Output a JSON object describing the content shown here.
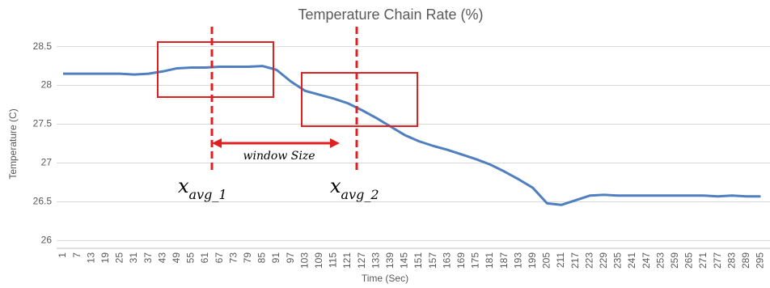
{
  "chart_data": {
    "type": "line",
    "title": "Temperature Chain Rate (%)",
    "x_label": "Time (Sec)",
    "y_label": "Temperature (C)",
    "categories": [
      "1",
      "7",
      "13",
      "19",
      "25",
      "31",
      "37",
      "43",
      "49",
      "55",
      "61",
      "67",
      "73",
      "79",
      "85",
      "91",
      "97",
      "103",
      "109",
      "115",
      "121",
      "127",
      "133",
      "139",
      "145",
      "151",
      "157",
      "163",
      "169",
      "175",
      "181",
      "187",
      "193",
      "199",
      "205",
      "211",
      "217",
      "223",
      "229",
      "235",
      "241",
      "247",
      "253",
      "259",
      "265",
      "271",
      "277",
      "283",
      "289",
      "295"
    ],
    "values": [
      28.15,
      28.15,
      28.15,
      28.15,
      28.15,
      28.14,
      28.15,
      28.18,
      28.22,
      28.23,
      28.23,
      28.24,
      28.24,
      28.24,
      28.25,
      28.2,
      28.05,
      27.93,
      27.88,
      27.83,
      27.77,
      27.68,
      27.58,
      27.47,
      27.36,
      27.28,
      27.22,
      27.17,
      27.11,
      27.05,
      26.98,
      26.89,
      26.79,
      26.68,
      26.48,
      26.46,
      26.52,
      26.58,
      26.59,
      26.58,
      26.58,
      26.58,
      26.58,
      26.58,
      26.58,
      26.58,
      26.57,
      26.58,
      26.57,
      26.57
    ],
    "color": "#4f7fbf",
    "ylim": [
      25.9,
      28.6
    ],
    "yticks": [
      26,
      26.5,
      27,
      27.5,
      28,
      28.5
    ],
    "grid": true,
    "annotations": {
      "window_label": "window Size",
      "markers": [
        {
          "base": "x",
          "sub": "avg_1"
        },
        {
          "base": "x",
          "sub": "avg_2"
        }
      ]
    }
  }
}
